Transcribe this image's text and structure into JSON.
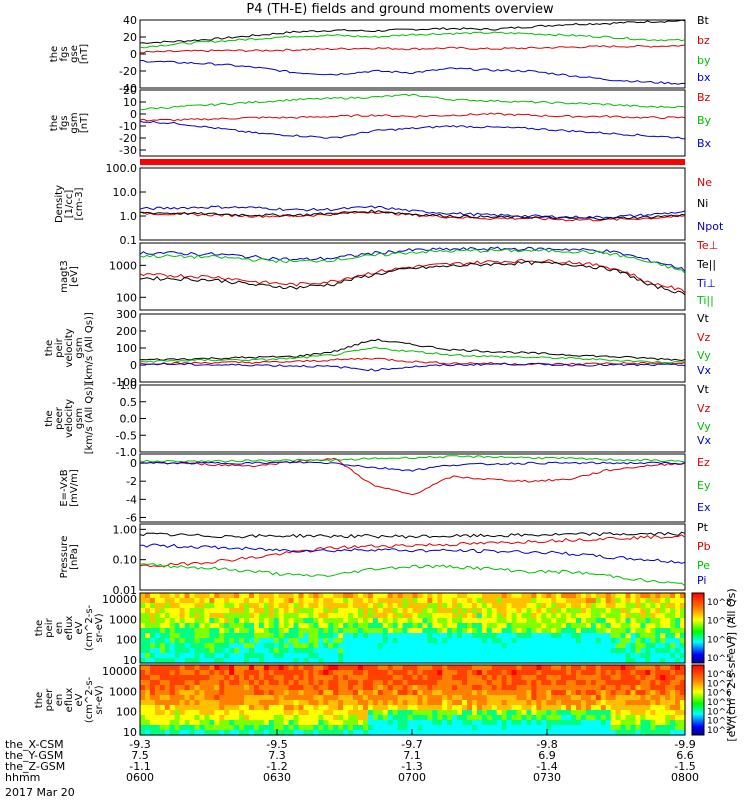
{
  "title": "P4 (TH-E) fields and ground moments overview",
  "date_label": "2017 Mar 20",
  "ephem_labels": [
    "the_X-CSM",
    "the_Y-GSM",
    "the_Z-GSM",
    "hhmm"
  ],
  "time_axis": {
    "x_values": [
      "-9.3",
      "-9.5",
      "-9.7",
      "-9.8",
      "-9.9"
    ],
    "y_values": [
      "7.5",
      "7.3",
      "7.1",
      "6.9",
      "6.6"
    ],
    "z_values": [
      "-1.1",
      "-1.2",
      "-1.3",
      "-1.4",
      "-1.5"
    ],
    "hhmm": [
      "0600",
      "0630",
      "0700",
      "0730",
      "0800"
    ]
  },
  "colorbar_label": "[eV/(cm^2-s-sr-eV)] (All Qs)",
  "chart_data": [
    {
      "type": "line",
      "id": "fgs_gse",
      "ylabel": [
        "the",
        "fgs",
        "gse",
        "[nT]"
      ],
      "ylim": [
        -40,
        40
      ],
      "yticks": [
        "40",
        "20",
        "0",
        "-20",
        "-40"
      ],
      "series": [
        {
          "name": "Bt",
          "color": "#000000",
          "values": [
            13,
            15,
            18,
            22,
            26,
            28,
            27,
            29,
            30,
            29,
            32,
            35,
            36,
            38,
            39
          ]
        },
        {
          "name": "bz",
          "color": "#dd0000",
          "values": [
            2,
            3,
            4,
            4,
            5,
            6,
            7,
            6,
            7,
            6,
            7,
            8,
            9,
            9,
            10
          ]
        },
        {
          "name": "by",
          "color": "#00c000",
          "values": [
            8,
            12,
            15,
            18,
            21,
            22,
            20,
            23,
            24,
            25,
            24,
            22,
            20,
            17,
            16
          ]
        },
        {
          "name": "bx",
          "color": "#0000cc",
          "values": [
            -8,
            -10,
            -12,
            -16,
            -22,
            -24,
            -20,
            -22,
            -17,
            -19,
            -20,
            -25,
            -30,
            -33,
            -35
          ]
        }
      ]
    },
    {
      "type": "line",
      "id": "fgs_gsm",
      "ylabel": [
        "the",
        "fgs",
        "gsm",
        "[nT]"
      ],
      "ylim": [
        -35,
        20
      ],
      "yticks": [
        "20",
        "10",
        "0",
        "-10",
        "-20",
        "-30"
      ],
      "series": [
        {
          "name": "Bz",
          "color": "#dd0000",
          "values": [
            -5,
            -5,
            -4,
            -3,
            -3,
            -2,
            -1,
            -2,
            -1,
            0,
            -1,
            -2,
            -2,
            -3,
            -3
          ]
        },
        {
          "name": "By",
          "color": "#00c000",
          "values": [
            4,
            6,
            8,
            10,
            12,
            13,
            14,
            16,
            12,
            11,
            10,
            9,
            8,
            6,
            6
          ]
        },
        {
          "name": "Bx",
          "color": "#0000cc",
          "values": [
            -6,
            -8,
            -12,
            -16,
            -18,
            -20,
            -14,
            -12,
            -10,
            -11,
            -12,
            -14,
            -16,
            -18,
            -20
          ]
        }
      ]
    },
    {
      "type": "line",
      "id": "density",
      "ylog": true,
      "ylabel": [
        "Density",
        "[1/cc]",
        "[cm-3]"
      ],
      "ylim": [
        0.1,
        100
      ],
      "yticks": [
        "100.0",
        "10.0",
        "1.0",
        "0.1"
      ],
      "series": [
        {
          "name": "Ne",
          "color": "#dd0000",
          "values": [
            1.3,
            1.2,
            1.1,
            1.0,
            1.0,
            1.2,
            1.5,
            1.1,
            0.9,
            0.8,
            0.8,
            0.7,
            0.7,
            0.8,
            1.0
          ]
        },
        {
          "name": "Ni",
          "color": "#000000",
          "values": [
            1.4,
            1.3,
            1.2,
            1.1,
            1.1,
            1.3,
            1.6,
            1.2,
            1.0,
            0.9,
            0.9,
            0.8,
            0.8,
            0.9,
            1.1
          ]
        },
        {
          "name": "Npot",
          "color": "#0000cc",
          "values": [
            2.0,
            2.2,
            2.4,
            2.2,
            1.8,
            1.9,
            2.4,
            1.6,
            1.3,
            1.1,
            1.0,
            0.9,
            0.9,
            1.1,
            1.5
          ]
        }
      ]
    },
    {
      "type": "line",
      "id": "temperature",
      "ylog": true,
      "ylabel": [
        "magt3",
        "[eV]"
      ],
      "ylim": [
        40,
        5000
      ],
      "yticks": [
        "1000",
        "100"
      ],
      "series": [
        {
          "name": "Te⊥",
          "color": "#dd0000",
          "values": [
            500,
            480,
            430,
            300,
            250,
            320,
            600,
            900,
            1100,
            1300,
            1400,
            1300,
            900,
            300,
            150
          ]
        },
        {
          "name": "Te||",
          "color": "#000000",
          "values": [
            400,
            380,
            340,
            240,
            200,
            260,
            500,
            800,
            950,
            1100,
            1200,
            1100,
            800,
            250,
            120
          ]
        },
        {
          "name": "Ti⊥",
          "color": "#0000cc",
          "values": [
            2500,
            2400,
            2200,
            1800,
            1500,
            1700,
            2400,
            3000,
            3200,
            3300,
            3300,
            3200,
            2800,
            1500,
            700
          ]
        },
        {
          "name": "Ti||",
          "color": "#00c000",
          "values": [
            2000,
            1900,
            1800,
            1500,
            1300,
            1500,
            2000,
            2600,
            2800,
            2900,
            2900,
            2800,
            2400,
            1300,
            600
          ]
        }
      ]
    },
    {
      "type": "line",
      "id": "peir_velocity",
      "ylabel": [
        "the",
        "peir",
        "velocity",
        "gsm",
        "[km/s (All Qs)]"
      ],
      "ylim": [
        -100,
        300
      ],
      "yticks": [
        "300",
        "200",
        "100",
        "0",
        "-100"
      ],
      "series": [
        {
          "name": "Vt",
          "color": "#000000",
          "values": [
            30,
            35,
            40,
            45,
            50,
            80,
            150,
            120,
            90,
            80,
            70,
            60,
            50,
            40,
            30
          ]
        },
        {
          "name": "Vz",
          "color": "#dd0000",
          "values": [
            10,
            10,
            15,
            15,
            20,
            30,
            40,
            20,
            10,
            10,
            5,
            5,
            10,
            10,
            10
          ]
        },
        {
          "name": "Vy",
          "color": "#00c000",
          "values": [
            20,
            25,
            30,
            30,
            40,
            60,
            100,
            80,
            60,
            50,
            45,
            40,
            30,
            20,
            15
          ]
        },
        {
          "name": "Vx",
          "color": "#0000cc",
          "values": [
            5,
            5,
            0,
            0,
            -5,
            -10,
            -30,
            -10,
            0,
            5,
            5,
            0,
            0,
            0,
            0
          ]
        }
      ]
    },
    {
      "type": "line",
      "id": "peer_velocity",
      "ylabel": [
        "the",
        "peer",
        "velocity",
        "gsm",
        "[km/s (All Qs)]"
      ],
      "ylim": [
        -1,
        1
      ],
      "yticks": [
        "1.0",
        "0.5",
        "0.0",
        "-0.5",
        "-1.0"
      ],
      "series": [
        {
          "name": "Vt",
          "color": "#000000",
          "values": []
        },
        {
          "name": "Vz",
          "color": "#dd0000",
          "values": []
        },
        {
          "name": "Vy",
          "color": "#00c000",
          "values": []
        },
        {
          "name": "Vx",
          "color": "#0000cc",
          "values": []
        }
      ]
    },
    {
      "type": "line",
      "id": "efield",
      "ylabel": [
        "E=-VxB",
        "[mV/m]"
      ],
      "ylim": [
        -6.5,
        1
      ],
      "yticks": [
        "0",
        "-2",
        "-4",
        "-6"
      ],
      "series": [
        {
          "name": "Ez",
          "color": "#dd0000",
          "values": [
            0,
            0,
            -0.2,
            -0.3,
            0.2,
            0.5,
            -2.5,
            -3.5,
            -1.5,
            -1.8,
            -2.0,
            -1.8,
            -0.8,
            -0.3,
            0
          ]
        },
        {
          "name": "Ey",
          "color": "#00c000",
          "values": [
            0.2,
            0.2,
            0.2,
            0.3,
            0.3,
            0.3,
            0.5,
            0.6,
            0.7,
            0.7,
            0.6,
            0.5,
            0.4,
            0.3,
            0.2
          ]
        },
        {
          "name": "Ex",
          "color": "#0000cc",
          "values": [
            0,
            0,
            0,
            0,
            0.1,
            0,
            -0.5,
            -0.8,
            -0.2,
            -0.1,
            0,
            0,
            0,
            0,
            0
          ]
        }
      ]
    },
    {
      "type": "line",
      "id": "pressure",
      "ylog": true,
      "ylabel": [
        "Pressure",
        "[nPa]"
      ],
      "ylim": [
        0.01,
        1.5
      ],
      "yticks": [
        "1.00",
        "0.10",
        "0.01"
      ],
      "series": [
        {
          "name": "Pt",
          "color": "#000000",
          "values": [
            0.7,
            0.65,
            0.6,
            0.6,
            0.62,
            0.6,
            0.6,
            0.58,
            0.6,
            0.62,
            0.65,
            0.68,
            0.7,
            0.7,
            0.72
          ]
        },
        {
          "name": "Pb",
          "color": "#dd0000",
          "values": [
            0.06,
            0.07,
            0.09,
            0.12,
            0.18,
            0.25,
            0.28,
            0.3,
            0.32,
            0.35,
            0.4,
            0.45,
            0.5,
            0.55,
            0.6
          ]
        },
        {
          "name": "Pe",
          "color": "#00c000",
          "values": [
            0.07,
            0.06,
            0.05,
            0.04,
            0.03,
            0.03,
            0.05,
            0.06,
            0.06,
            0.05,
            0.04,
            0.04,
            0.03,
            0.02,
            0.015
          ]
        },
        {
          "name": "Pi",
          "color": "#0000cc",
          "values": [
            0.3,
            0.28,
            0.25,
            0.22,
            0.2,
            0.2,
            0.22,
            0.2,
            0.2,
            0.19,
            0.18,
            0.16,
            0.12,
            0.1,
            0.08
          ]
        }
      ]
    },
    {
      "type": "heatmap",
      "id": "peir_en_eflux",
      "ylabel": [
        "the",
        "peir",
        "en",
        "eflux",
        "eV",
        "(cm^2-s-",
        "sr-eV)"
      ],
      "ylog": true,
      "ylim": [
        7,
        20000
      ],
      "yticks": [
        "10000",
        "1000",
        "100",
        "10"
      ],
      "colorbar_ticks": [
        "10^8",
        "10^7",
        "10^6",
        "10^5"
      ]
    },
    {
      "type": "heatmap",
      "id": "peer_en_eflux",
      "ylabel": [
        "the",
        "peer",
        "en",
        "eflux",
        "eV",
        "(cm^2-s-",
        "sr-eV)"
      ],
      "ylog": true,
      "ylim": [
        7,
        20000
      ],
      "yticks": [
        "10000",
        "1000",
        "100",
        "10"
      ],
      "colorbar_ticks": [
        "10^8",
        "10^7",
        "10^6",
        "10^5",
        "10^4",
        "10^3",
        "10^2"
      ]
    }
  ]
}
